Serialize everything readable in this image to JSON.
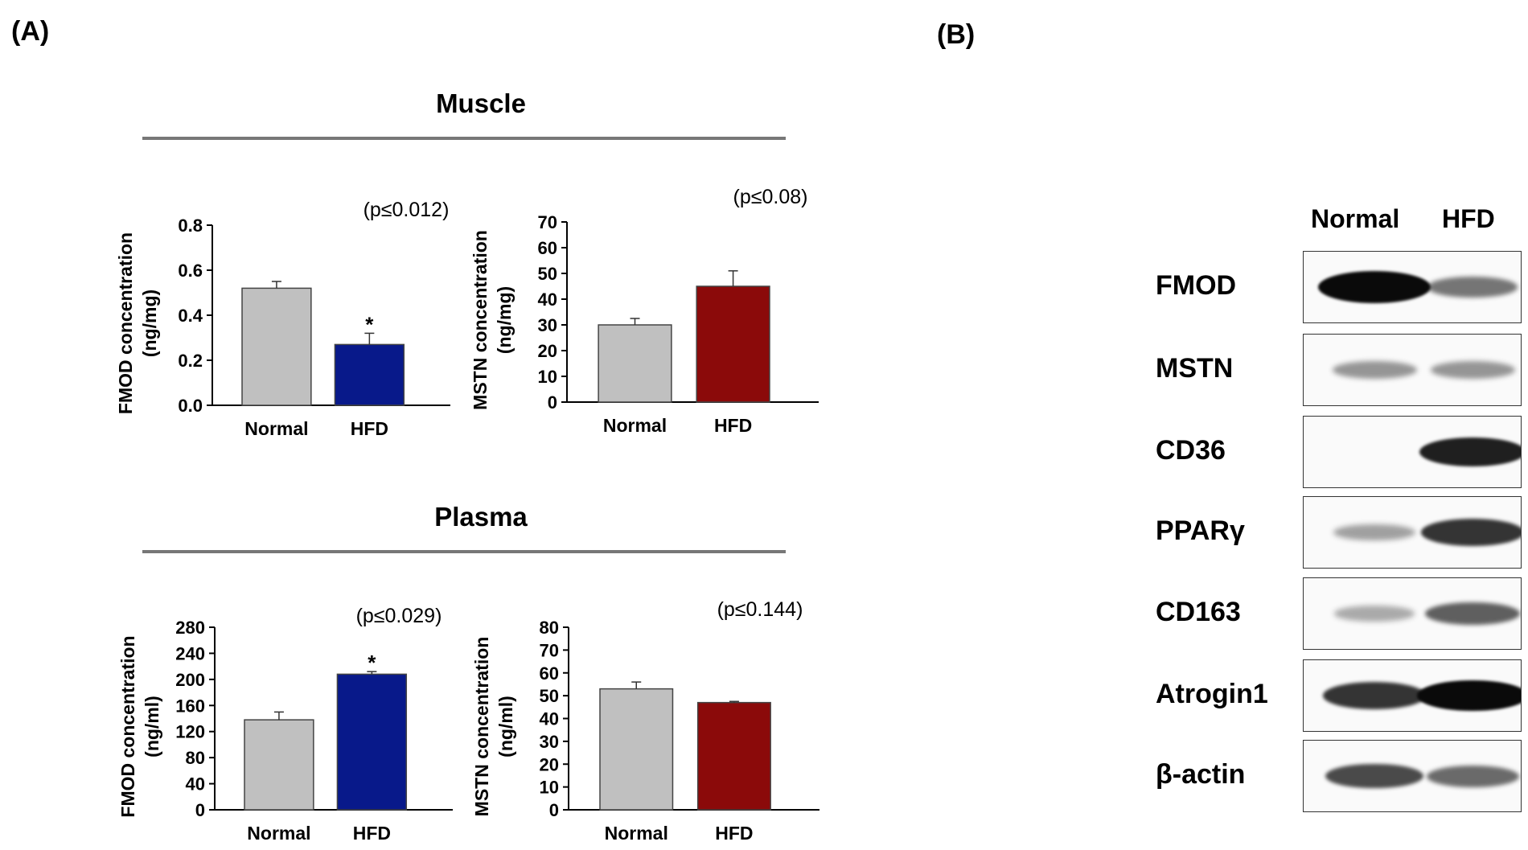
{
  "panel_labels": {
    "a": "(A)",
    "b": "(B)"
  },
  "sections": {
    "muscle": "Muscle",
    "plasma": "Plasma"
  },
  "colors": {
    "normal": "#c0c0c0",
    "hfd_fmod": "#08198a",
    "hfd_mstn": "#8b0a0a"
  },
  "chart_data": [
    {
      "type": "bar",
      "section": "Muscle",
      "categories": [
        "Normal",
        "HFD"
      ],
      "values": [
        0.52,
        0.27
      ],
      "errors": [
        0.03,
        0.05
      ],
      "significance": [
        "",
        "*"
      ],
      "ylabel_line1": "FMOD concentration",
      "ylabel_line2": "(ng/mg)",
      "ylim": [
        0,
        0.8
      ],
      "yticks": [
        "0.0",
        "0.2",
        "0.4",
        "0.6",
        "0.8"
      ],
      "pvalue": "(p≤0.012)"
    },
    {
      "type": "bar",
      "section": "Muscle",
      "categories": [
        "Normal",
        "HFD"
      ],
      "values": [
        30,
        45
      ],
      "errors": [
        2.5,
        6
      ],
      "significance": [
        "",
        ""
      ],
      "ylabel_line1": "MSTN concentration",
      "ylabel_line2": "(ng/mg)",
      "ylim": [
        0,
        70
      ],
      "yticks": [
        "0",
        "10",
        "20",
        "30",
        "40",
        "50",
        "60",
        "70"
      ],
      "pvalue": "(p≤0.08)"
    },
    {
      "type": "bar",
      "section": "Plasma",
      "categories": [
        "Normal",
        "HFD"
      ],
      "values": [
        138,
        208
      ],
      "errors": [
        12,
        4
      ],
      "significance": [
        "",
        "*"
      ],
      "ylabel_line1": "FMOD concentration",
      "ylabel_line2": "(ng/ml)",
      "ylim": [
        0,
        280
      ],
      "yticks": [
        "0",
        "40",
        "80",
        "120",
        "160",
        "200",
        "240",
        "280"
      ],
      "pvalue": "(p≤0.029)"
    },
    {
      "type": "bar",
      "section": "Plasma",
      "categories": [
        "Normal",
        "HFD"
      ],
      "values": [
        53,
        47
      ],
      "errors": [
        3,
        0.5
      ],
      "significance": [
        "",
        ""
      ],
      "ylabel_line1": "MSTN concentration",
      "ylabel_line2": "(ng/ml)",
      "ylim": [
        0,
        80
      ],
      "yticks": [
        "0",
        "10",
        "20",
        "30",
        "40",
        "50",
        "60",
        "70",
        "80"
      ],
      "pvalue": "(p≤0.144)"
    }
  ],
  "western_blot": {
    "columns": [
      "Normal",
      "HFD"
    ],
    "rows": [
      {
        "label": "FMOD",
        "normal": 1.0,
        "hfd": 0.45
      },
      {
        "label": "MSTN",
        "normal": 0.3,
        "hfd": 0.3
      },
      {
        "label": "CD36",
        "normal": 0.0,
        "hfd": 0.85
      },
      {
        "label": "PPARγ",
        "normal": 0.25,
        "hfd": 0.75
      },
      {
        "label": "CD163",
        "normal": 0.2,
        "hfd": 0.55
      },
      {
        "label": "Atrogin1",
        "normal": 0.75,
        "hfd": 0.95
      },
      {
        "label": "β-actin",
        "normal": 0.65,
        "hfd": 0.5
      }
    ]
  }
}
